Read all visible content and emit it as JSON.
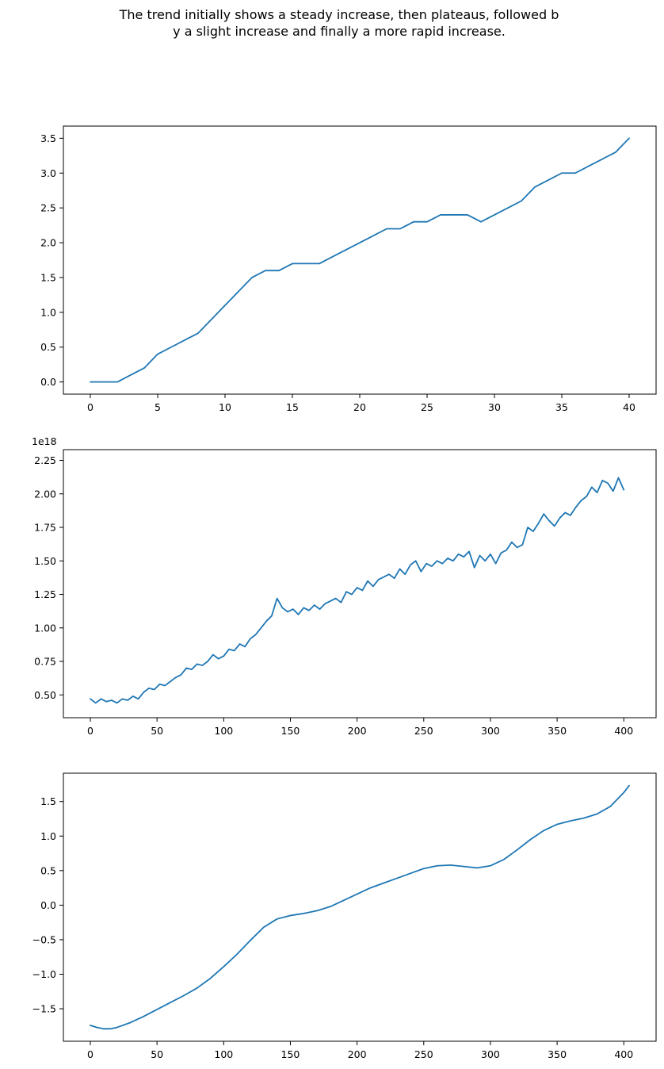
{
  "figure": {
    "title_lines": [
      "The trend initially shows a steady increase, then plateaus, followed b",
      "y a slight increase and finally a more rapid increase."
    ],
    "line_color": "#1f77b4"
  },
  "chart_data": [
    {
      "type": "line",
      "title": "",
      "xlabel": "",
      "ylabel": "",
      "xlim": [
        -2,
        42
      ],
      "ylim": [
        -0.175,
        3.675
      ],
      "grid": false,
      "xticks": [
        0,
        5,
        10,
        15,
        20,
        25,
        30,
        35,
        40
      ],
      "xtick_labels": [
        "0",
        "5",
        "10",
        "15",
        "20",
        "25",
        "30",
        "35",
        "40"
      ],
      "yticks": [
        0,
        0.5,
        1,
        1.5,
        2,
        2.5,
        3,
        3.5
      ],
      "ytick_labels": [
        "0.0",
        "0.5",
        "1.0",
        "1.5",
        "2.0",
        "2.5",
        "3.0",
        "3.5"
      ],
      "series": [
        {
          "x": [
            0,
            1,
            2,
            3,
            4,
            5,
            6,
            7,
            8,
            9,
            10,
            11,
            12,
            13,
            14,
            15,
            16,
            17,
            18,
            19,
            20,
            21,
            22,
            23,
            24,
            25,
            26,
            27,
            28,
            29,
            30,
            31,
            32,
            33,
            34,
            35,
            36,
            37,
            38,
            39,
            40
          ],
          "values": [
            0,
            0,
            0,
            0.1,
            0.2,
            0.4,
            0.5,
            0.6,
            0.7,
            0.9,
            1.1,
            1.3,
            1.5,
            1.6,
            1.6,
            1.7,
            1.7,
            1.7,
            1.8,
            1.9,
            2.0,
            2.1,
            2.2,
            2.2,
            2.3,
            2.3,
            2.4,
            2.4,
            2.4,
            2.3,
            2.4,
            2.5,
            2.6,
            2.8,
            2.9,
            3.0,
            3.0,
            3.1,
            3.2,
            3.3,
            3.5
          ]
        }
      ]
    },
    {
      "type": "line",
      "title": "",
      "xlabel": "",
      "ylabel": "",
      "offset_text": "1e18",
      "xlim": [
        -20.2,
        424.2
      ],
      "ylim": [
        0.33,
        2.33
      ],
      "grid": false,
      "xticks": [
        0,
        50,
        100,
        150,
        200,
        250,
        300,
        350,
        400
      ],
      "xtick_labels": [
        "0",
        "50",
        "100",
        "150",
        "200",
        "250",
        "300",
        "350",
        "400"
      ],
      "yticks": [
        0.5,
        0.75,
        1.0,
        1.25,
        1.5,
        1.75,
        2.0,
        2.25
      ],
      "ytick_labels": [
        "0.50",
        "0.75",
        "1.00",
        "1.25",
        "1.50",
        "1.75",
        "2.00",
        "2.25"
      ],
      "series": [
        {
          "x_start": 0,
          "x_step": 4,
          "values": [
            0.47,
            0.44,
            0.47,
            0.45,
            0.46,
            0.44,
            0.47,
            0.46,
            0.49,
            0.47,
            0.52,
            0.55,
            0.54,
            0.58,
            0.57,
            0.6,
            0.63,
            0.65,
            0.7,
            0.69,
            0.73,
            0.72,
            0.75,
            0.8,
            0.77,
            0.79,
            0.84,
            0.83,
            0.88,
            0.86,
            0.92,
            0.95,
            1.0,
            1.05,
            1.09,
            1.22,
            1.15,
            1.12,
            1.14,
            1.1,
            1.15,
            1.13,
            1.17,
            1.14,
            1.18,
            1.2,
            1.22,
            1.19,
            1.27,
            1.25,
            1.3,
            1.28,
            1.35,
            1.31,
            1.36,
            1.38,
            1.4,
            1.37,
            1.44,
            1.4,
            1.47,
            1.5,
            1.42,
            1.48,
            1.46,
            1.5,
            1.48,
            1.52,
            1.5,
            1.55,
            1.53,
            1.57,
            1.45,
            1.54,
            1.5,
            1.55,
            1.48,
            1.56,
            1.58,
            1.64,
            1.6,
            1.62,
            1.75,
            1.72,
            1.78,
            1.85,
            1.8,
            1.76,
            1.82,
            1.86,
            1.84,
            1.9,
            1.95,
            1.98,
            2.05,
            2.01,
            2.1,
            2.08,
            2.02,
            2.12,
            2.03
          ]
        }
      ]
    },
    {
      "type": "line",
      "title": "",
      "xlabel": "",
      "ylabel": "",
      "xlim": [
        -20.2,
        424.2
      ],
      "ylim": [
        -1.97,
        1.91
      ],
      "grid": false,
      "xticks": [
        0,
        50,
        100,
        150,
        200,
        250,
        300,
        350,
        400
      ],
      "xtick_labels": [
        "0",
        "50",
        "100",
        "150",
        "200",
        "250",
        "300",
        "350",
        "400"
      ],
      "yticks": [
        -1.5,
        -1.0,
        -0.5,
        0.0,
        0.5,
        1.0,
        1.5
      ],
      "ytick_labels": [
        "−1.5",
        "−1.0",
        "−0.5",
        "0.0",
        "0.5",
        "1.0",
        "1.5"
      ],
      "series": [
        {
          "x": [
            0,
            5,
            10,
            15,
            20,
            30,
            40,
            50,
            60,
            70,
            80,
            90,
            100,
            110,
            120,
            130,
            140,
            150,
            160,
            170,
            180,
            190,
            200,
            210,
            220,
            230,
            240,
            250,
            260,
            270,
            280,
            290,
            300,
            310,
            320,
            330,
            340,
            350,
            360,
            370,
            380,
            390,
            400,
            404
          ],
          "values": [
            -1.74,
            -1.77,
            -1.79,
            -1.79,
            -1.77,
            -1.7,
            -1.61,
            -1.51,
            -1.41,
            -1.31,
            -1.2,
            -1.06,
            -0.89,
            -0.71,
            -0.51,
            -0.32,
            -0.2,
            -0.15,
            -0.12,
            -0.08,
            -0.02,
            0.07,
            0.16,
            0.25,
            0.32,
            0.39,
            0.46,
            0.53,
            0.57,
            0.58,
            0.56,
            0.54,
            0.57,
            0.66,
            0.8,
            0.95,
            1.08,
            1.17,
            1.22,
            1.26,
            1.32,
            1.43,
            1.63,
            1.73
          ]
        }
      ]
    }
  ]
}
